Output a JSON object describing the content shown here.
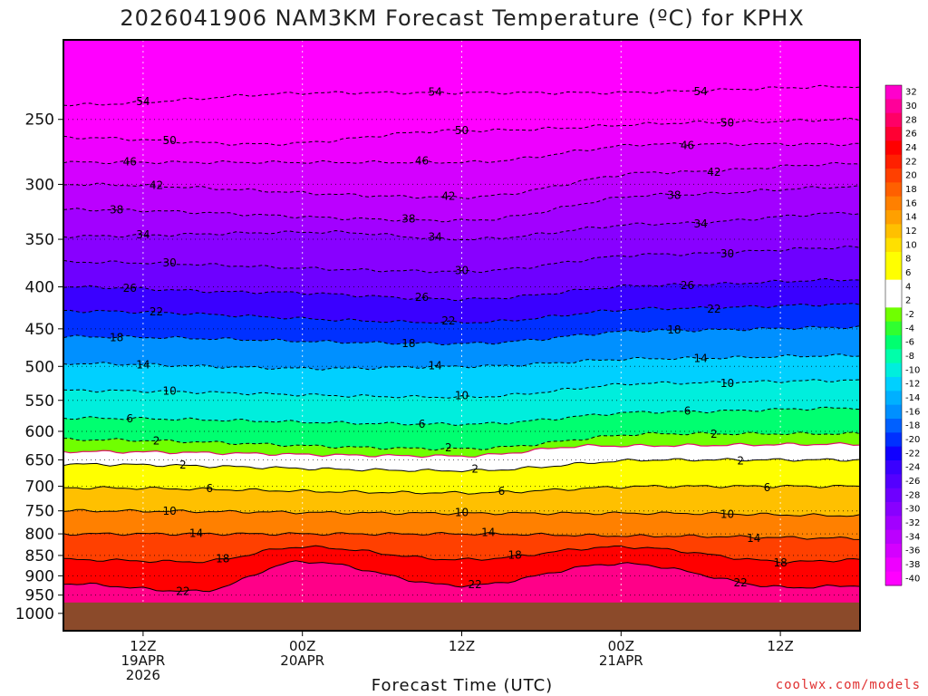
{
  "title": "2026041906 NAM3KM Forecast Temperature (ºC) for KPHX",
  "credit": "coolwx.com/models",
  "colors": {
    "ground": "#8b4a2a",
    "frame": "#000000",
    "zero_line": "#e0106a",
    "palette": [
      "#ff00ff",
      "#ee00ff",
      "#d400ff",
      "#bb00ff",
      "#a200ff",
      "#8800ff",
      "#6e00ff",
      "#5400ff",
      "#3a00ff",
      "#1000ff",
      "#0030ff",
      "#0060ff",
      "#0090ff",
      "#00b0ff",
      "#00d0ff",
      "#00eedd",
      "#00ffaa",
      "#00ff70",
      "#30ff30",
      "#70ff00",
      "#ffffff",
      "#ffff00",
      "#ffe000",
      "#ffc000",
      "#ffa000",
      "#ff8000",
      "#ff6000",
      "#ff4000",
      "#ff2000",
      "#ff0000",
      "#ff0044",
      "#ff0088",
      "#ff00cc"
    ]
  },
  "chart_data": {
    "type": "heatmap",
    "title": "2026041906 NAM3KM Forecast Temperature (ºC) for KPHX",
    "xlabel": "Forecast Time (UTC)",
    "ylabel": "",
    "x_range_hours": [
      0,
      60
    ],
    "y_range_hpa": [
      200,
      1050
    ],
    "y_scale": "log-pressure (inverted)",
    "y_ticks": [
      250,
      300,
      350,
      400,
      450,
      500,
      550,
      600,
      650,
      700,
      750,
      800,
      850,
      900,
      950,
      1000
    ],
    "x_ticks": [
      {
        "hour": 6,
        "lines": [
          "12Z",
          "19APR",
          "2026"
        ]
      },
      {
        "hour": 18,
        "lines": [
          "00Z",
          "20APR"
        ]
      },
      {
        "hour": 30,
        "lines": [
          "12Z"
        ]
      },
      {
        "hour": 42,
        "lines": [
          "00Z",
          "21APR"
        ]
      },
      {
        "hour": 54,
        "lines": [
          "12Z"
        ]
      }
    ],
    "grid": true,
    "colorbar_labels": [
      "32",
      "30",
      "28",
      "26",
      "24",
      "22",
      "20",
      "18",
      "16",
      "14",
      "12",
      "10",
      "8",
      "6",
      "4",
      "2",
      "-2",
      "-4",
      "-6",
      "-8",
      "-10",
      "-12",
      "-14",
      "-16",
      "-18",
      "-20",
      "-22",
      "-24",
      "-26",
      "-28",
      "-30",
      "-32",
      "-34",
      "-36",
      "-38",
      "-40"
    ],
    "contours": [
      {
        "value": -54,
        "hpa_at": {
          "0": 240,
          "20": 232,
          "40": 232,
          "60": 228
        }
      },
      {
        "value": -50,
        "hpa_at": {
          "0": 263,
          "15": 268,
          "30": 258,
          "50": 252,
          "60": 250
        }
      },
      {
        "value": -46,
        "hpa_at": {
          "0": 282,
          "30": 282,
          "45": 268,
          "60": 268
        }
      },
      {
        "value": -42,
        "hpa_at": {
          "0": 300,
          "30": 311,
          "45": 290,
          "60": 283
        }
      },
      {
        "value": -38,
        "hpa_at": {
          "0": 322,
          "30": 332,
          "45": 309,
          "60": 302
        }
      },
      {
        "value": -34,
        "hpa_at": {
          "0": 347,
          "20": 343,
          "30": 350,
          "45": 335,
          "60": 325
        }
      },
      {
        "value": -30,
        "hpa_at": {
          "0": 373,
          "30": 383,
          "45": 365,
          "60": 358
        }
      },
      {
        "value": -26,
        "hpa_at": {
          "0": 400,
          "15": 406,
          "30": 414,
          "45": 398,
          "60": 392
        }
      },
      {
        "value": -22,
        "hpa_at": {
          "0": 428,
          "30": 442,
          "45": 425,
          "60": 420
        }
      },
      {
        "value": -18,
        "hpa_at": {
          "0": 460,
          "30": 469,
          "45": 452,
          "60": 448
        }
      },
      {
        "value": -14,
        "hpa_at": {
          "0": 496,
          "20": 503,
          "30": 500,
          "45": 489,
          "60": 485
        }
      },
      {
        "value": -10,
        "hpa_at": {
          "0": 535,
          "30": 545,
          "45": 524,
          "60": 520
        }
      },
      {
        "value": -6,
        "hpa_at": {
          "0": 578,
          "30": 588,
          "45": 568,
          "60": 562
        }
      },
      {
        "value": -2,
        "hpa_at": {
          "0": 614,
          "30": 630,
          "45": 604,
          "60": 604
        }
      },
      {
        "value": 0,
        "hpa_at": {
          "0": 635,
          "30": 643,
          "40": 625,
          "60": 622
        }
      },
      {
        "value": 2,
        "hpa_at": {
          "0": 658,
          "30": 670,
          "45": 650,
          "60": 650
        }
      },
      {
        "value": 6,
        "hpa_at": {
          "0": 703,
          "30": 713,
          "45": 700,
          "60": 700
        }
      },
      {
        "value": 10,
        "hpa_at": {
          "0": 750,
          "30": 755,
          "45": 755,
          "60": 760
        }
      },
      {
        "value": 14,
        "hpa_at": {
          "0": 800,
          "30": 800,
          "45": 805,
          "60": 810
        }
      },
      {
        "value": 18,
        "hpa_at": {
          "0": 860,
          "10": 865,
          "18": 830,
          "30": 860,
          "42": 830,
          "55": 865,
          "60": 860
        }
      },
      {
        "value": 22,
        "hpa_at": {
          "0": 920,
          "10": 940,
          "18": 865,
          "30": 925,
          "42": 870,
          "55": 930,
          "60": 925
        }
      }
    ],
    "ground_hpa": 970
  }
}
